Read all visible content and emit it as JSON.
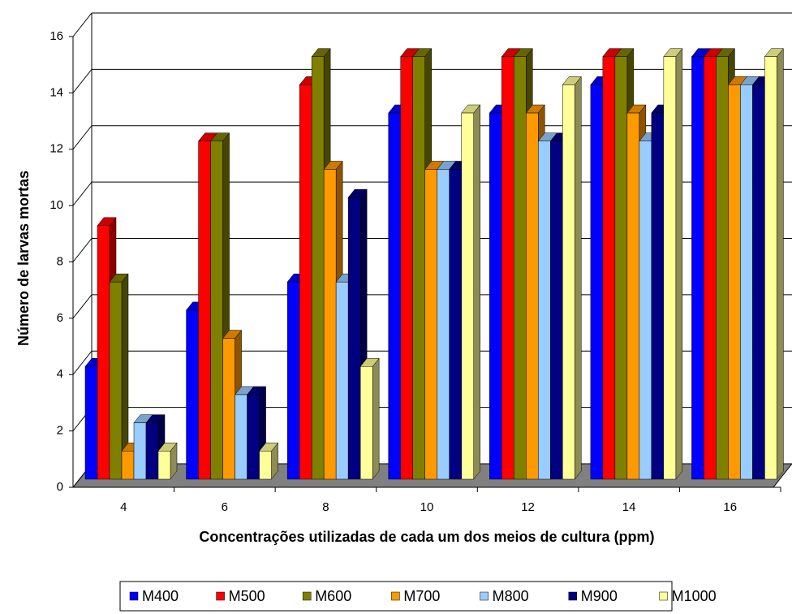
{
  "chart_data": {
    "type": "bar3d",
    "x_label": "Concentrações utilizadas de cada um dos meios de cultura (ppm)",
    "y_label": "Número de larvas mortas",
    "categories": [
      "4",
      "6",
      "8",
      "10",
      "12",
      "14",
      "16"
    ],
    "series": [
      {
        "name": "M400",
        "color": "#0000ff",
        "values": [
          4,
          6,
          7,
          13,
          13,
          14,
          15
        ]
      },
      {
        "name": "M500",
        "color": "#ff0000",
        "values": [
          9,
          12,
          14,
          15,
          15,
          15,
          15
        ]
      },
      {
        "name": "M600",
        "color": "#808000",
        "values": [
          7,
          12,
          15,
          15,
          15,
          15,
          15
        ]
      },
      {
        "name": "M700",
        "color": "#ff9900",
        "values": [
          1,
          5,
          11,
          11,
          13,
          13,
          14
        ]
      },
      {
        "name": "M800",
        "color": "#99ccff",
        "values": [
          2,
          3,
          7,
          11,
          12,
          12,
          14
        ]
      },
      {
        "name": "M900",
        "color": "#000080",
        "values": [
          2,
          3,
          10,
          11,
          12,
          13,
          14
        ]
      },
      {
        "name": "M1000",
        "color": "#ffff99",
        "values": [
          1,
          1,
          4,
          13,
          14,
          15,
          15
        ]
      }
    ],
    "ylim": [
      0,
      16
    ],
    "yticks": [
      0,
      2,
      4,
      6,
      8,
      10,
      12,
      14,
      16
    ],
    "grid": true,
    "legend": "bottom"
  }
}
